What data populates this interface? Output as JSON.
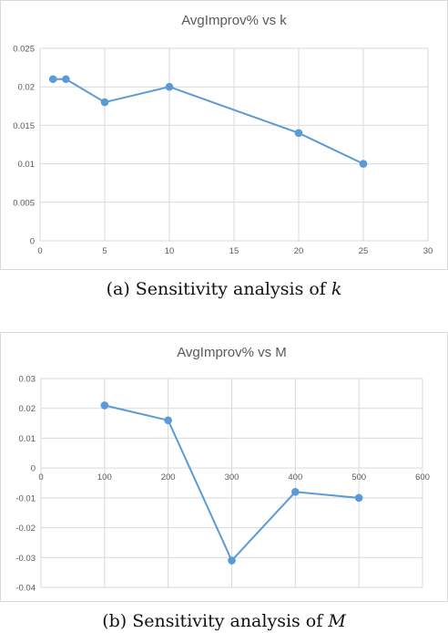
{
  "chart_data": [
    {
      "type": "line",
      "title": "AvgImprov% vs k",
      "xlabel": "",
      "ylabel": "",
      "xlim": [
        0,
        30
      ],
      "ylim": [
        0,
        0.025
      ],
      "x_ticks": [
        "0",
        "5",
        "10",
        "15",
        "20",
        "25",
        "30"
      ],
      "y_ticks": [
        "0",
        "0.005",
        "0.01",
        "0.015",
        "0.02",
        "0.025"
      ],
      "grid": true,
      "series": [
        {
          "color": "#5b9bd5",
          "x": [
            1,
            2,
            5,
            10,
            20,
            25
          ],
          "y": [
            0.021,
            0.021,
            0.018,
            0.02,
            0.014,
            0.01
          ]
        }
      ]
    },
    {
      "type": "line",
      "title": "AvgImprov% vs M",
      "xlabel": "",
      "ylabel": "",
      "xlim": [
        0,
        600
      ],
      "ylim": [
        -0.04,
        0.03
      ],
      "x_ticks": [
        "0",
        "100",
        "200",
        "300",
        "400",
        "500",
        "600"
      ],
      "y_ticks": [
        "-0.04",
        "-0.03",
        "-0.02",
        "-0.01",
        "0",
        "0.01",
        "0.02",
        "0.03"
      ],
      "grid": true,
      "series": [
        {
          "color": "#5b9bd5",
          "x": [
            100,
            200,
            300,
            400,
            500
          ],
          "y": [
            0.021,
            0.016,
            -0.031,
            -0.008,
            -0.01
          ]
        }
      ]
    }
  ],
  "captions": [
    {
      "prefix": "(a) Sensitivity analysis of ",
      "var": "k"
    },
    {
      "prefix": "(b) Sensitivity analysis of ",
      "var": "M"
    }
  ]
}
